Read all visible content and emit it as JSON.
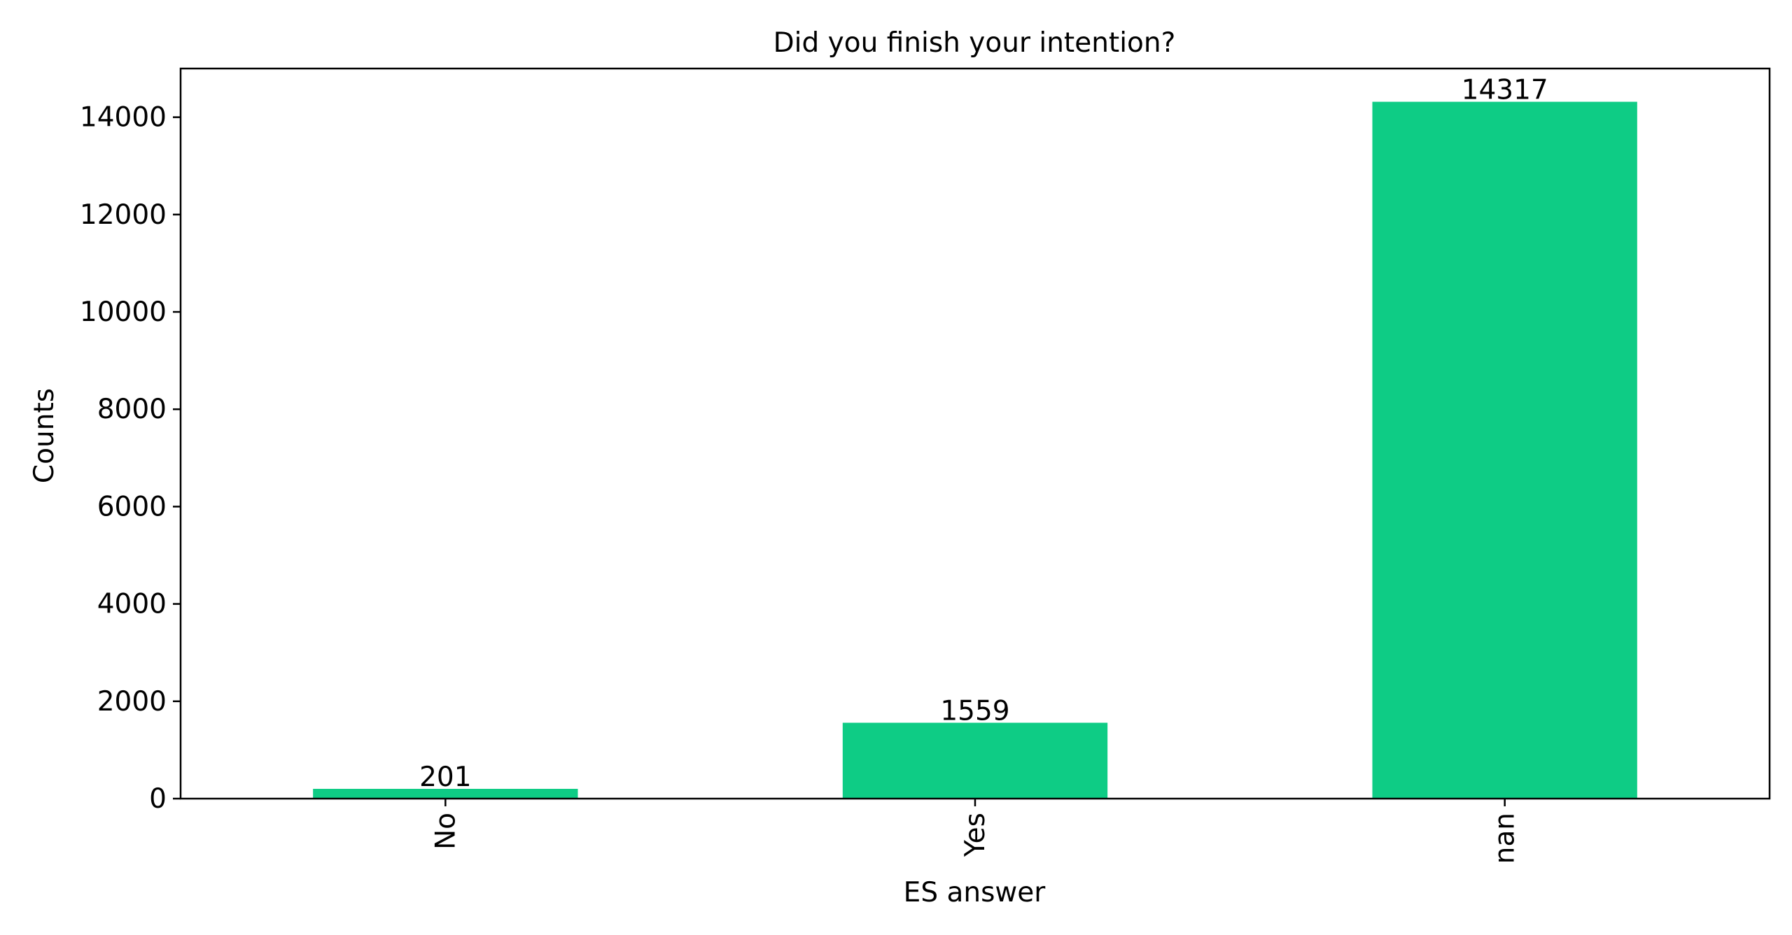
{
  "chart_data": {
    "type": "bar",
    "title": "Did you finish your intention?",
    "xlabel": "ES answer",
    "ylabel": "Counts",
    "categories": [
      "No",
      "Yes",
      "nan"
    ],
    "values": [
      201,
      1559,
      14317
    ],
    "data_labels": [
      "201",
      "1559",
      "14317"
    ],
    "ylim": [
      0,
      15000
    ],
    "yticks": [
      0,
      2000,
      4000,
      6000,
      8000,
      10000,
      12000,
      14000
    ],
    "ytick_labels": [
      "0",
      "2000",
      "4000",
      "6000",
      "8000",
      "10000",
      "12000",
      "14000"
    ],
    "bar_color": "#0ecc85",
    "grid": false,
    "legend": false
  }
}
